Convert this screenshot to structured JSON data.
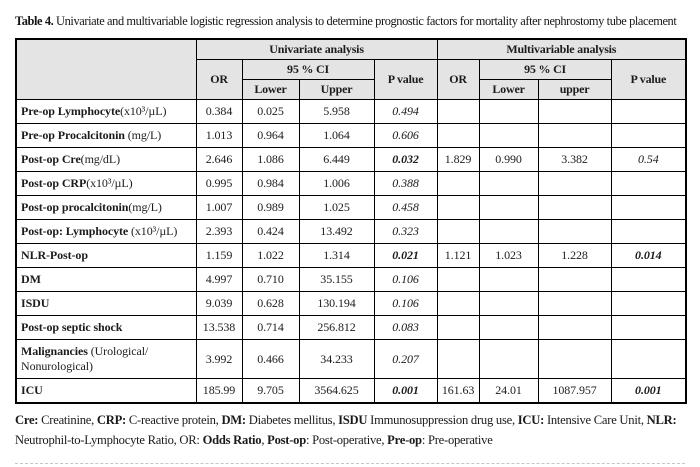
{
  "page": {
    "title_label": "Table 4.",
    "title_text": " Univariate and multivariable logistic regression analysis to determine prognostic factors for mortality after nephrostomy tube placement"
  },
  "table": {
    "headers": {
      "univariate": "Univariate analysis",
      "multivariable": "Multivariable analysis",
      "or": "OR",
      "ci": "95 % CI",
      "p_value": "P value",
      "uni_lower": "Lower",
      "uni_upper": "Upper",
      "multi_lower": "Lower",
      "multi_upper": "upper"
    },
    "rows": [
      {
        "label_bold": "Pre-op Lymphocyte",
        "label_rest": "(x10³/µL)",
        "u_or": "0.384",
        "u_lower": "0.025",
        "u_upper": "5.958",
        "u_p": "0.494",
        "u_p_sig": false,
        "m_or": "",
        "m_lower": "",
        "m_upper": "",
        "m_p": "",
        "m_p_sig": false,
        "tall": false
      },
      {
        "label_bold": "Pre-op Procalcitonin",
        "label_rest": " (mg/L)",
        "u_or": "1.013",
        "u_lower": "0.964",
        "u_upper": "1.064",
        "u_p": "0.606",
        "u_p_sig": false,
        "m_or": "",
        "m_lower": "",
        "m_upper": "",
        "m_p": "",
        "m_p_sig": false,
        "tall": false
      },
      {
        "label_bold": "Post-op Cre",
        "label_rest": "(mg/dL)",
        "u_or": "2.646",
        "u_lower": "1.086",
        "u_upper": "6.449",
        "u_p": "0.032",
        "u_p_sig": true,
        "m_or": "1.829",
        "m_lower": "0.990",
        "m_upper": "3.382",
        "m_p": "0.54",
        "m_p_sig": false,
        "tall": false
      },
      {
        "label_bold": "Post-op CRP",
        "label_rest": "(x10³/µL)",
        "u_or": "0.995",
        "u_lower": "0.984",
        "u_upper": "1.006",
        "u_p": "0.388",
        "u_p_sig": false,
        "m_or": "",
        "m_lower": "",
        "m_upper": "",
        "m_p": "",
        "m_p_sig": false,
        "tall": false
      },
      {
        "label_bold": "Post-op procalcitonin",
        "label_rest": "(mg/L)",
        "u_or": "1.007",
        "u_lower": "0.989",
        "u_upper": "1.025",
        "u_p": "0.458",
        "u_p_sig": false,
        "m_or": "",
        "m_lower": "",
        "m_upper": "",
        "m_p": "",
        "m_p_sig": false,
        "tall": false
      },
      {
        "label_bold": "Post-op: Lymphocyte",
        "label_rest": " (x10³/µL)",
        "u_or": "2.393",
        "u_lower": "0.424",
        "u_upper": "13.492",
        "u_p": "0.323",
        "u_p_sig": false,
        "m_or": "",
        "m_lower": "",
        "m_upper": "",
        "m_p": "",
        "m_p_sig": false,
        "tall": false
      },
      {
        "label_bold": "NLR-Post-op",
        "label_rest": "",
        "u_or": "1.159",
        "u_lower": "1.022",
        "u_upper": "1.314",
        "u_p": "0.021",
        "u_p_sig": true,
        "m_or": "1.121",
        "m_lower": "1.023",
        "m_upper": "1.228",
        "m_p": "0.014",
        "m_p_sig": true,
        "tall": false
      },
      {
        "label_bold": "DM",
        "label_rest": "",
        "u_or": "4.997",
        "u_lower": "0.710",
        "u_upper": "35.155",
        "u_p": "0.106",
        "u_p_sig": false,
        "m_or": "",
        "m_lower": "",
        "m_upper": "",
        "m_p": "",
        "m_p_sig": false,
        "tall": false
      },
      {
        "label_bold": "ISDU",
        "label_rest": "",
        "u_or": "9.039",
        "u_lower": "0.628",
        "u_upper": "130.194",
        "u_p": "0.106",
        "u_p_sig": false,
        "m_or": "",
        "m_lower": "",
        "m_upper": "",
        "m_p": "",
        "m_p_sig": false,
        "tall": false
      },
      {
        "label_bold": "Post-op septic shock",
        "label_rest": "",
        "u_or": "13.538",
        "u_lower": "0.714",
        "u_upper": "256.812",
        "u_p": "0.083",
        "u_p_sig": false,
        "m_or": "",
        "m_lower": "",
        "m_upper": "",
        "m_p": "",
        "m_p_sig": false,
        "tall": false
      },
      {
        "label_bold": "Malignancies",
        "label_rest": " (Urological/ Nonurological)",
        "u_or": "3.992",
        "u_lower": "0.466",
        "u_upper": "34.233",
        "u_p": "0.207",
        "u_p_sig": false,
        "m_or": "",
        "m_lower": "",
        "m_upper": "",
        "m_p": "",
        "m_p_sig": false,
        "tall": true
      },
      {
        "label_bold": "ICU",
        "label_rest": "",
        "u_or": "185.99",
        "u_lower": "9.705",
        "u_upper": "3564.625",
        "u_p": "0.001",
        "u_p_sig": true,
        "m_or": "161.63",
        "m_lower": "24.01",
        "m_upper": "1087.957",
        "m_p": "0.001",
        "m_p_sig": true,
        "tall": false
      }
    ]
  },
  "footnote": {
    "segments": [
      {
        "t": "Cre:",
        "b": true
      },
      {
        "t": " Creatinine, ",
        "b": false
      },
      {
        "t": "CRP:",
        "b": true
      },
      {
        "t": " C-reactive protein, ",
        "b": false
      },
      {
        "t": "DM:",
        "b": true
      },
      {
        "t": " Diabetes mellitus, ",
        "b": false
      },
      {
        "t": "ISDU",
        "b": true
      },
      {
        "t": " Immunosuppression drug use, ",
        "b": false
      },
      {
        "t": "ICU:",
        "b": true
      },
      {
        "t": " Intensive Care Unit, ",
        "b": false
      },
      {
        "t": "NLR:",
        "b": true
      },
      {
        "t": " Neutrophil-to-Lymphocyte Ratio, OR: ",
        "b": false
      },
      {
        "t": "Odds Ratio",
        "b": true
      },
      {
        "t": ", ",
        "b": false
      },
      {
        "t": "Post-op",
        "b": true
      },
      {
        "t": ": Post-operative, ",
        "b": false
      },
      {
        "t": "Pre-op",
        "b": true
      },
      {
        "t": ": Pre-operative",
        "b": false
      }
    ]
  }
}
